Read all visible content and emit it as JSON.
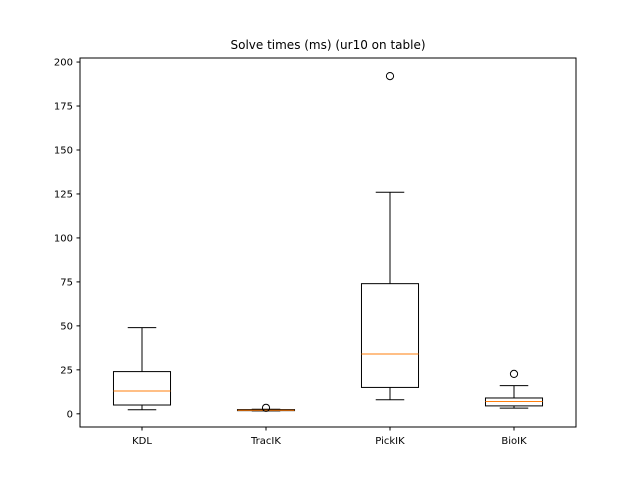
{
  "chart_data": {
    "type": "box",
    "title": "Solve times (ms) (ur10 on table)",
    "xlabel": "",
    "ylabel": "",
    "ylim": [
      -7.5,
      202.3
    ],
    "yticks": [
      0,
      25,
      50,
      75,
      100,
      125,
      150,
      175,
      200
    ],
    "grid": false,
    "categories": [
      "KDL",
      "TracIK",
      "PickIK",
      "BioIK"
    ],
    "boxes": [
      {
        "whisker_low": 2.3,
        "q1": 5.0,
        "median": 13.0,
        "q3": 24.0,
        "whisker_high": 49.0,
        "outliers": []
      },
      {
        "whisker_low": 1.7,
        "q1": 1.8,
        "median": 2.0,
        "q3": 2.4,
        "whisker_high": 2.6,
        "outliers": [
          3.4
        ]
      },
      {
        "whisker_low": 8.0,
        "q1": 15.0,
        "median": 34.0,
        "q3": 74.0,
        "whisker_high": 126.0,
        "outliers": [
          192.0
        ]
      },
      {
        "whisker_low": 3.2,
        "q1": 4.5,
        "median": 7.0,
        "q3": 9.0,
        "whisker_high": 16.0,
        "outliers": [
          22.7
        ]
      }
    ],
    "colors": {
      "box": "#000000",
      "median": "#ff7f0e",
      "outlier": "#000000"
    }
  }
}
